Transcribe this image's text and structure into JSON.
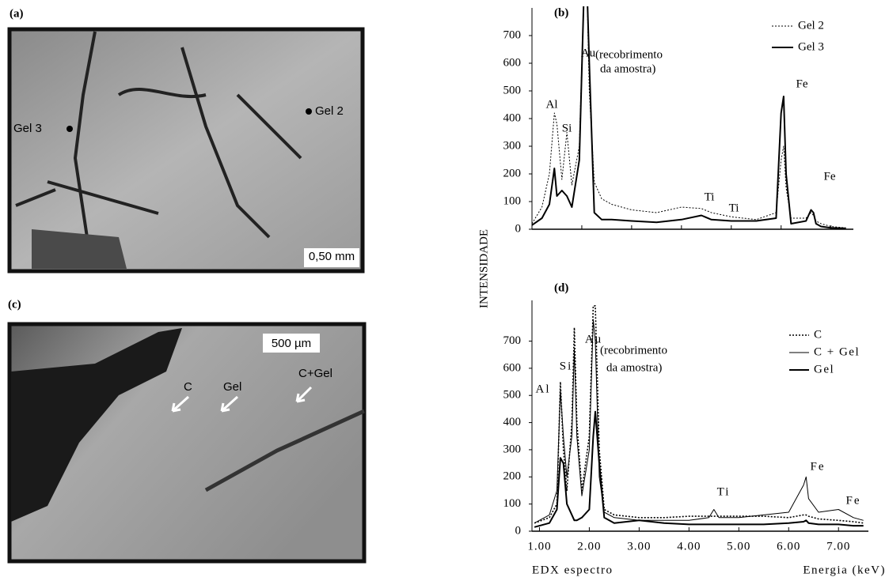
{
  "panels": {
    "a": {
      "label": "(a)",
      "marks": [
        "Gel 3",
        "Gel 2"
      ],
      "scale": "0,50 mm"
    },
    "c": {
      "label": "(c)",
      "marks": [
        "C",
        "Gel",
        "C+Gel"
      ],
      "scale": "500 µm"
    }
  },
  "shared_y_label": "INTENSIDADE",
  "chart_data": [
    {
      "type": "line",
      "title": "(b)",
      "x": [
        1.0,
        1.2,
        1.35,
        1.45,
        1.5,
        1.6,
        1.7,
        1.8,
        1.95,
        2.05,
        2.1,
        2.15,
        2.25,
        2.4,
        2.6,
        3.0,
        3.5,
        4.0,
        4.4,
        4.6,
        5.0,
        5.5,
        5.9,
        6.0,
        6.05,
        6.1,
        6.2,
        6.5,
        6.6,
        6.65,
        6.7,
        6.8,
        7.0,
        7.3
      ],
      "series": [
        {
          "name": "Gel 2",
          "color": "#000000",
          "line_style": "dotted",
          "line_width": 1,
          "values": [
            20,
            80,
            200,
            420,
            380,
            180,
            350,
            160,
            300,
            900,
            900,
            500,
            170,
            110,
            90,
            70,
            60,
            80,
            75,
            60,
            45,
            35,
            60,
            250,
            300,
            150,
            40,
            40,
            60,
            50,
            30,
            20,
            10,
            5
          ]
        },
        {
          "name": "Gel 3",
          "color": "#000000",
          "line_style": "solid",
          "line_width": 2,
          "values": [
            15,
            40,
            90,
            220,
            120,
            140,
            120,
            80,
            250,
            900,
            900,
            600,
            60,
            35,
            35,
            30,
            25,
            35,
            50,
            35,
            30,
            30,
            40,
            420,
            480,
            200,
            20,
            30,
            70,
            60,
            20,
            10,
            5,
            3
          ]
        }
      ],
      "annotations": [
        "Al",
        "Si",
        "Au",
        "(recobrimento",
        "da amostra)",
        "Ti",
        "Ti",
        "Fe",
        "Fe"
      ],
      "xlim": [
        1.0,
        7.45
      ],
      "xticks": [
        2,
        3,
        4,
        5,
        6,
        7
      ],
      "ylim": [
        0,
        800
      ],
      "yticks": [
        0,
        100,
        200,
        300,
        400,
        500,
        600,
        700
      ]
    },
    {
      "type": "line",
      "title": "(d)",
      "x": [
        0.9,
        1.2,
        1.35,
        1.42,
        1.48,
        1.55,
        1.65,
        1.7,
        1.75,
        1.85,
        2.0,
        2.08,
        2.12,
        2.2,
        2.3,
        2.5,
        3.0,
        3.5,
        4.0,
        4.4,
        4.5,
        4.6,
        5.0,
        5.5,
        6.0,
        6.3,
        6.35,
        6.4,
        6.6,
        7.0,
        7.3,
        7.5
      ],
      "series": [
        {
          "name": "C",
          "color": "#000000",
          "line_style": "dotted",
          "line_width": 1.6,
          "values": [
            30,
            50,
            100,
            550,
            300,
            150,
            400,
            750,
            400,
            150,
            350,
            830,
            830,
            300,
            80,
            60,
            50,
            50,
            55,
            55,
            55,
            55,
            55,
            55,
            50,
            60,
            60,
            55,
            45,
            40,
            35,
            30
          ]
        },
        {
          "name": "C + Gel",
          "color": "#000000",
          "line_style": "solid",
          "line_width": 1,
          "values": [
            30,
            60,
            150,
            520,
            350,
            200,
            350,
            670,
            350,
            130,
            300,
            780,
            700,
            200,
            70,
            50,
            40,
            40,
            40,
            50,
            80,
            50,
            50,
            60,
            70,
            170,
            200,
            120,
            70,
            80,
            50,
            40
          ]
        },
        {
          "name": "Gel",
          "color": "#000000",
          "line_style": "solid",
          "line_width": 2,
          "values": [
            15,
            30,
            80,
            270,
            250,
            100,
            60,
            40,
            40,
            50,
            80,
            350,
            440,
            250,
            50,
            30,
            40,
            30,
            25,
            25,
            25,
            25,
            25,
            25,
            30,
            35,
            40,
            30,
            25,
            25,
            20,
            20
          ]
        }
      ],
      "annotations": [
        "Al",
        "Si",
        "Au",
        "(recobrimento",
        "da amostra)",
        "Ti",
        "Fe",
        "Fe"
      ],
      "x_label_left": "EDX espectro",
      "x_label": "Energia (keV)",
      "xlim": [
        0.85,
        7.6
      ],
      "xticks": [
        {
          "value": 1,
          "label": "1.00"
        },
        {
          "value": 2,
          "label": "2.00"
        },
        {
          "value": 3,
          "label": "3.00"
        },
        {
          "value": 4,
          "label": "4.00"
        },
        {
          "value": 5,
          "label": "5.00"
        },
        {
          "value": 6,
          "label": "6.00"
        },
        {
          "value": 7,
          "label": "7.00"
        }
      ],
      "ylim": [
        0,
        850
      ],
      "yticks": [
        0,
        100,
        200,
        300,
        400,
        500,
        600,
        700
      ]
    }
  ]
}
